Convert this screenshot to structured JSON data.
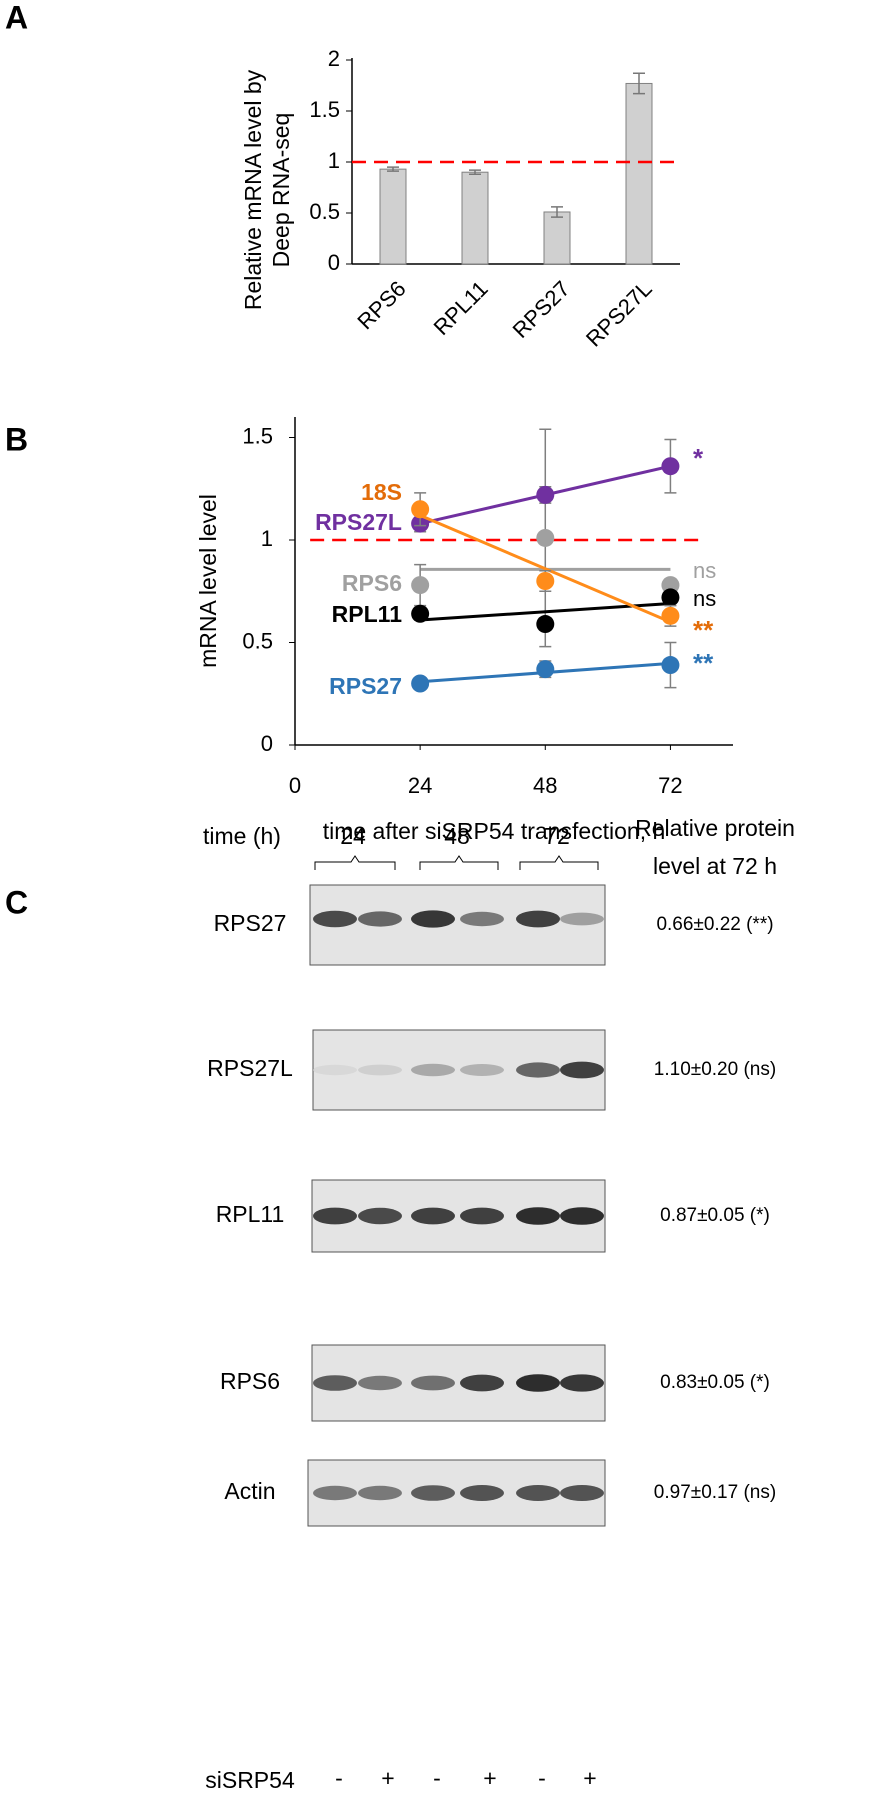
{
  "panels": [
    "A",
    "B",
    "C"
  ],
  "chart_data": [
    {
      "type": "bar",
      "y_label": [
        "Relative mRNA level by",
        "Deep RNA-seq"
      ],
      "categories": [
        "RPS6",
        "RPL11",
        "RPS27",
        "RPS27L"
      ],
      "values": [
        0.93,
        0.9,
        0.51,
        1.77
      ],
      "errors": [
        0.02,
        0.02,
        0.05,
        0.1
      ],
      "color": "#d0d0d0",
      "ylim": [
        0,
        2
      ],
      "yticks": [
        0,
        0.5,
        1,
        1.5,
        2
      ],
      "ref_line": 1,
      "ref_color": "#ff0000"
    },
    {
      "type": "line",
      "x_label": "time after siSRP54 transfection, h",
      "y_label": "mRNA level level",
      "x": [
        24,
        48,
        72
      ],
      "xlim": [
        0,
        84
      ],
      "xticks": [
        0,
        24,
        48,
        72
      ],
      "ylim": [
        0,
        1.6
      ],
      "yticks": [
        0,
        0.5,
        1,
        1.5
      ],
      "ref_line": 1,
      "ref_color": "#ff0000",
      "series": [
        {
          "name": "18S",
          "color": "#ff8c1a",
          "label_color": "#e36c09",
          "values": [
            1.15,
            0.8,
            0.63
          ],
          "errors": [
            0.08,
            0.05,
            0.05
          ],
          "significance": "**"
        },
        {
          "name": "RPS27L",
          "color": "#7030a0",
          "label_color": "#7030a0",
          "values": [
            1.08,
            1.22,
            1.36
          ],
          "errors": [
            0.04,
            0.04,
            0.13
          ],
          "significance": "*"
        },
        {
          "name": "RPS6",
          "color": "#a0a0a0",
          "label_color": "#a0a0a0",
          "values": [
            0.78,
            1.01,
            0.78
          ],
          "errors": [
            0.1,
            0.53,
            0.03
          ],
          "significance": "ns"
        },
        {
          "name": "RPL11",
          "color": "#000000",
          "label_color": "#000000",
          "values": [
            0.64,
            0.59,
            0.72
          ],
          "errors": [
            0.03,
            0.03,
            0.03
          ],
          "significance": "ns"
        },
        {
          "name": "RPS27",
          "color": "#2e75b6",
          "label_color": "#2e75b6",
          "values": [
            0.3,
            0.37,
            0.39
          ],
          "errors": [
            0.02,
            0.04,
            0.11
          ],
          "significance": "**"
        }
      ]
    }
  ],
  "blot": {
    "time_label": "time (h)",
    "times": [
      "24",
      "48",
      "72"
    ],
    "header": [
      "Relative protein",
      "level at 72 h"
    ],
    "rows": [
      {
        "protein": "RPS27",
        "value": "0.66±0.22 (**)"
      },
      {
        "protein": "RPS27L",
        "value": "1.10±0.20 (ns)"
      },
      {
        "protein": "RPL11",
        "value": "0.87±0.05 (*)"
      },
      {
        "protein": "RPS6",
        "value": "0.83±0.05 (*)"
      },
      {
        "protein": "Actin",
        "value": "0.97±0.17 (ns)"
      }
    ],
    "treatment_label": "siSRP54",
    "treatment_signs": [
      "-",
      "+",
      "-",
      "+",
      "-",
      "+"
    ]
  }
}
